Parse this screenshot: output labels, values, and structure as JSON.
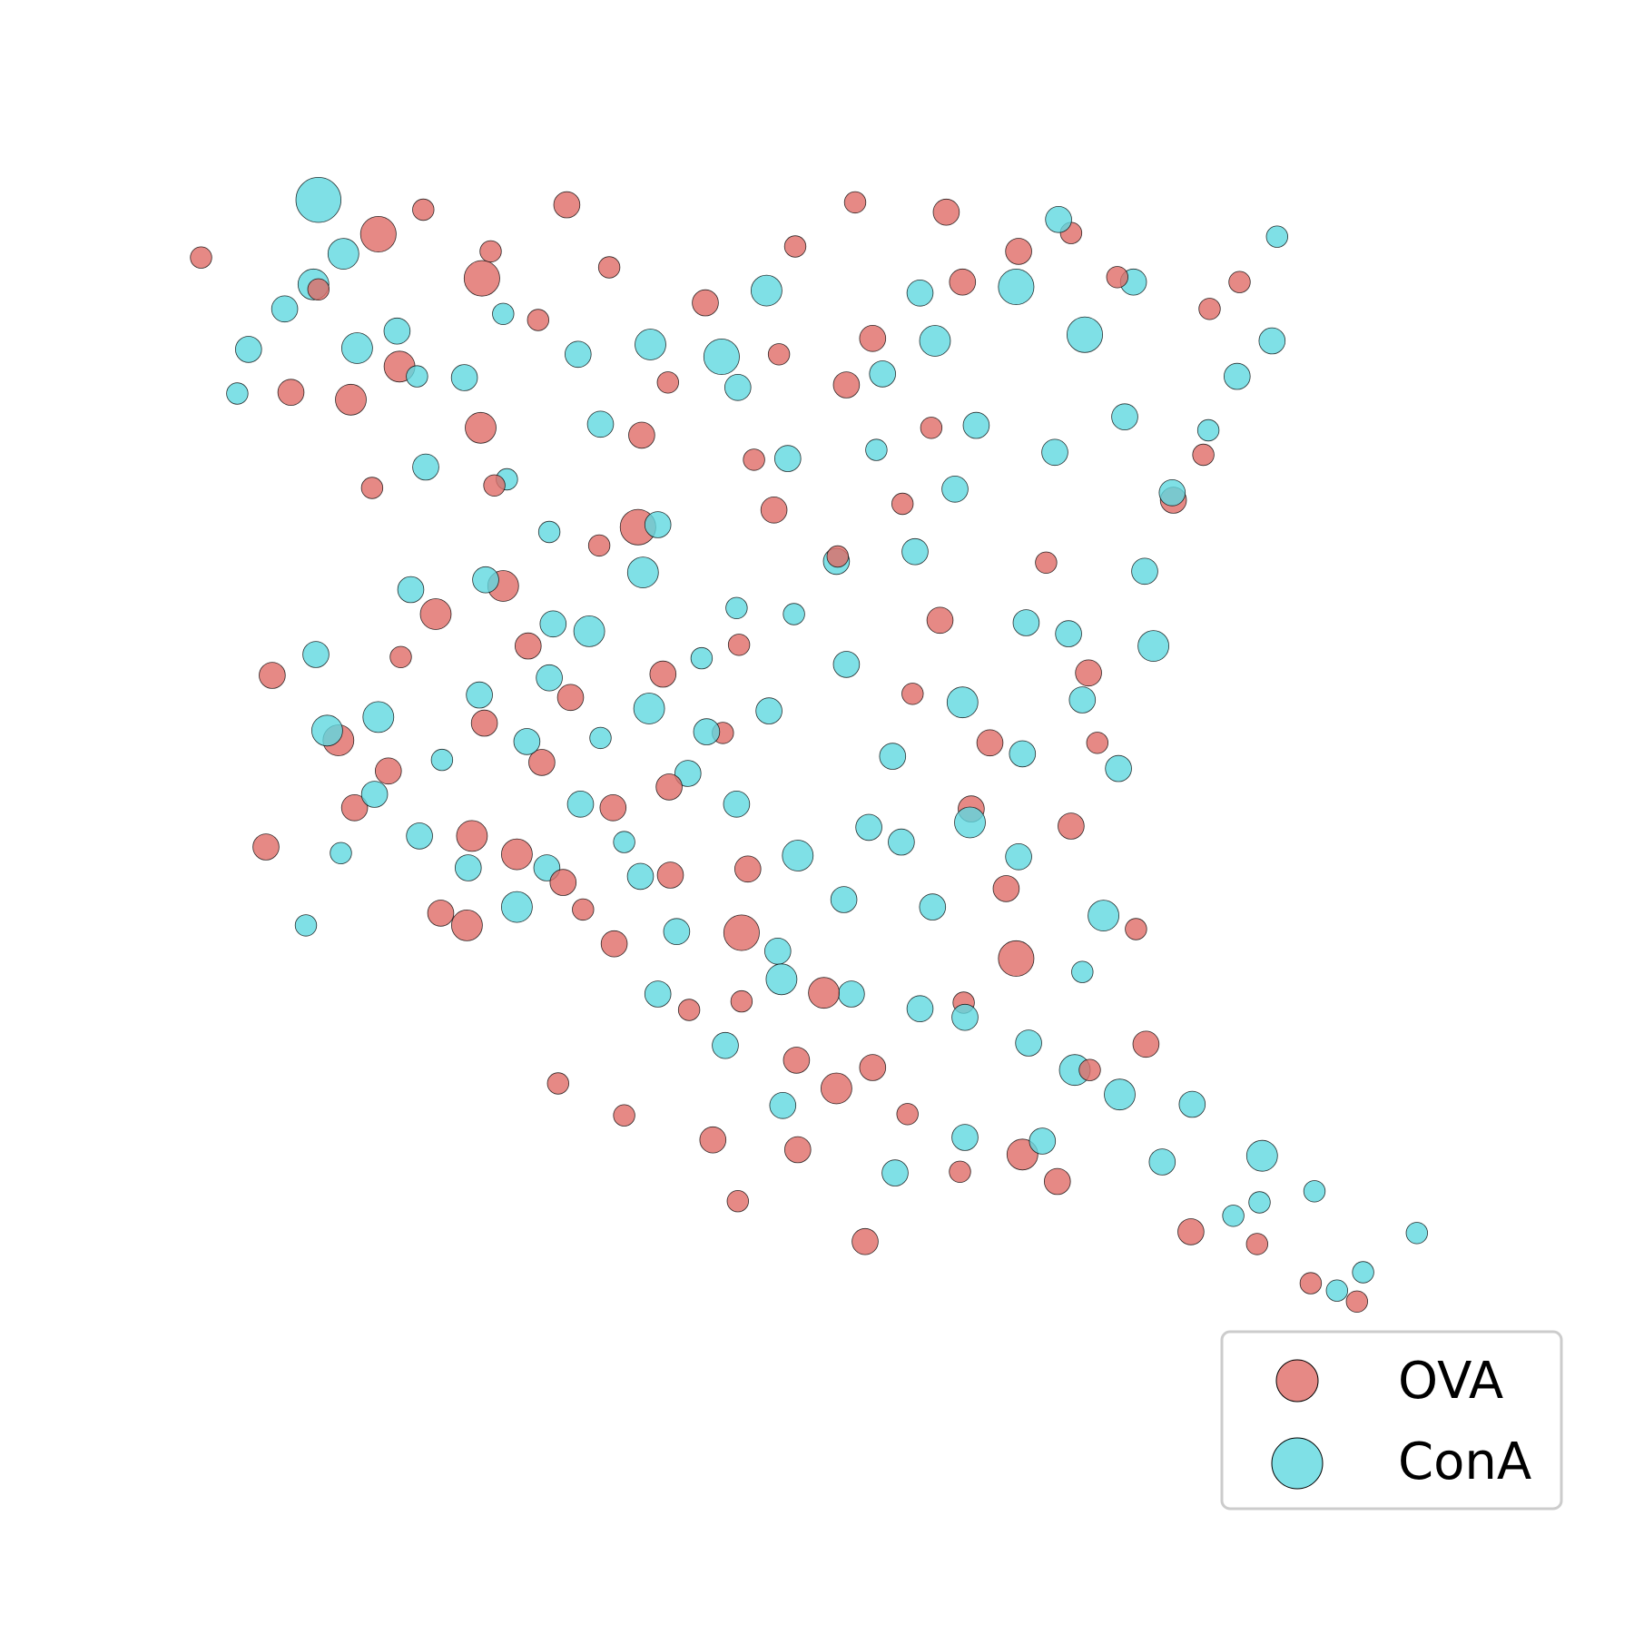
{
  "chart_data": {
    "type": "scatter",
    "title": "",
    "xlabel": "",
    "ylabel": "",
    "axes_visible": false,
    "grid": false,
    "legend_placement": "lower-right",
    "xlim": [
      0,
      100
    ],
    "ylim": [
      0,
      100
    ],
    "series": [
      {
        "name": "OVA",
        "color": "#e06c66",
        "points": [
          [
            1.2,
            90.1,
            3
          ],
          [
            15.4,
            92.0,
            6
          ],
          [
            23.7,
            88.4,
            6
          ],
          [
            30.5,
            94.4,
            4
          ],
          [
            28.2,
            85.0,
            3
          ],
          [
            17.1,
            81.2,
            5
          ],
          [
            13.2,
            78.5,
            5
          ],
          [
            23.6,
            76.2,
            5
          ],
          [
            36.5,
            75.6,
            4
          ],
          [
            47.1,
            69.5,
            4
          ],
          [
            55.0,
            83.5,
            4
          ],
          [
            52.9,
            79.7,
            4
          ],
          [
            60.9,
            93.8,
            4
          ],
          [
            62.2,
            88.1,
            4
          ],
          [
            66.7,
            90.6,
            4
          ],
          [
            45.5,
            73.6,
            3
          ],
          [
            36.2,
            68.1,
            6
          ],
          [
            25.4,
            63.3,
            5
          ],
          [
            20.0,
            61.0,
            5
          ],
          [
            27.4,
            58.4,
            4
          ],
          [
            23.9,
            52.1,
            4
          ],
          [
            30.8,
            54.2,
            4
          ],
          [
            12.2,
            50.7,
            5
          ],
          [
            6.9,
            56.0,
            4
          ],
          [
            16.2,
            48.2,
            4
          ],
          [
            13.5,
            45.2,
            4
          ],
          [
            22.9,
            42.9,
            5
          ],
          [
            26.5,
            41.4,
            5
          ],
          [
            34.2,
            45.2,
            4
          ],
          [
            38.8,
            39.7,
            4
          ],
          [
            45.0,
            40.2,
            4
          ],
          [
            30.2,
            39.1,
            4
          ],
          [
            22.5,
            35.6,
            5
          ],
          [
            34.3,
            34.1,
            4
          ],
          [
            44.5,
            35.0,
            6
          ],
          [
            44.5,
            29.4,
            3
          ],
          [
            51.1,
            30.1,
            5
          ],
          [
            48.9,
            24.6,
            4
          ],
          [
            52.1,
            22.3,
            5
          ],
          [
            55.0,
            24.0,
            4
          ],
          [
            66.5,
            32.9,
            6
          ],
          [
            62.9,
            45.1,
            4
          ],
          [
            70.9,
            43.7,
            4
          ],
          [
            65.7,
            38.6,
            4
          ],
          [
            64.4,
            50.5,
            4
          ],
          [
            72.3,
            56.2,
            4
          ],
          [
            60.4,
            60.5,
            4
          ],
          [
            52.2,
            65.7,
            3
          ],
          [
            44.3,
            58.5,
            3
          ],
          [
            38.2,
            56.1,
            4
          ],
          [
            33.1,
            66.6,
            3
          ],
          [
            20.4,
            36.6,
            4
          ],
          [
            6.4,
            42.0,
            4
          ],
          [
            76.9,
            25.9,
            4
          ],
          [
            72.4,
            23.8,
            3
          ],
          [
            57.8,
            20.2,
            3
          ],
          [
            62.0,
            15.5,
            3
          ],
          [
            67.0,
            16.9,
            5
          ],
          [
            69.8,
            14.7,
            4
          ],
          [
            80.5,
            10.6,
            4
          ],
          [
            85.8,
            9.6,
            3
          ],
          [
            90.1,
            6.4,
            3
          ],
          [
            93.8,
            4.9,
            3
          ],
          [
            54.4,
            9.8,
            4
          ],
          [
            44.2,
            13.1,
            3
          ],
          [
            35.1,
            20.1,
            3
          ],
          [
            29.8,
            22.7,
            3
          ],
          [
            42.2,
            18.1,
            4
          ],
          [
            49.0,
            17.3,
            4
          ],
          [
            38.7,
            46.9,
            4
          ],
          [
            58.2,
            54.5,
            3
          ],
          [
            73.0,
            50.5,
            3
          ],
          [
            79.1,
            70.3,
            4
          ],
          [
            81.5,
            74.0,
            3
          ],
          [
            8.4,
            79.1,
            4
          ],
          [
            33.9,
            89.3,
            3
          ],
          [
            41.6,
            86.4,
            4
          ],
          [
            47.5,
            82.2,
            3
          ],
          [
            57.4,
            70.0,
            3
          ],
          [
            68.9,
            65.2,
            3
          ],
          [
            10.6,
            87.5,
            3
          ],
          [
            19.0,
            94.0,
            3
          ],
          [
            24.4,
            90.6,
            3
          ],
          [
            48.8,
            91.0,
            3
          ],
          [
            53.6,
            94.6,
            3
          ],
          [
            70.9,
            92.1,
            3
          ],
          [
            74.6,
            88.5,
            3
          ],
          [
            84.4,
            88.1,
            3
          ],
          [
            82.0,
            85.9,
            3
          ],
          [
            28.5,
            48.9,
            4
          ],
          [
            31.8,
            36.9,
            3
          ],
          [
            40.3,
            28.7,
            3
          ],
          [
            62.3,
            29.3,
            3
          ],
          [
            76.1,
            35.3,
            3
          ],
          [
            17.2,
            57.5,
            3
          ],
          [
            59.7,
            76.2,
            3
          ],
          [
            38.6,
            79.9,
            3
          ],
          [
            24.7,
            71.5,
            3
          ],
          [
            14.9,
            71.3,
            3
          ],
          [
            43.0,
            51.3,
            3
          ]
        ]
      },
      {
        "name": "ConA",
        "color": "#5fd8e0",
        "points": [
          [
            10.6,
            94.8,
            8
          ],
          [
            12.6,
            90.4,
            5
          ],
          [
            10.2,
            87.9,
            5
          ],
          [
            13.7,
            82.7,
            5
          ],
          [
            4.1,
            79.0,
            3
          ],
          [
            18.5,
            80.4,
            3
          ],
          [
            25.4,
            85.5,
            3
          ],
          [
            37.2,
            83.0,
            5
          ],
          [
            46.5,
            87.4,
            5
          ],
          [
            42.9,
            82.0,
            6
          ],
          [
            31.4,
            82.2,
            4
          ],
          [
            44.2,
            79.5,
            4
          ],
          [
            55.8,
            80.6,
            4
          ],
          [
            60.0,
            83.3,
            5
          ],
          [
            58.8,
            87.2,
            4
          ],
          [
            66.5,
            87.7,
            6
          ],
          [
            69.9,
            93.2,
            4
          ],
          [
            75.9,
            88.1,
            4
          ],
          [
            87.4,
            91.8,
            3
          ],
          [
            87.0,
            83.3,
            4
          ],
          [
            72.0,
            83.8,
            6
          ],
          [
            63.3,
            76.4,
            4
          ],
          [
            69.6,
            74.2,
            4
          ],
          [
            48.2,
            73.7,
            4
          ],
          [
            37.8,
            68.3,
            4
          ],
          [
            29.1,
            67.7,
            3
          ],
          [
            36.6,
            64.4,
            5
          ],
          [
            32.3,
            59.6,
            5
          ],
          [
            29.1,
            55.8,
            4
          ],
          [
            18.0,
            63.0,
            4
          ],
          [
            10.4,
            57.7,
            4
          ],
          [
            11.3,
            51.5,
            5
          ],
          [
            15.4,
            52.6,
            5
          ],
          [
            23.5,
            54.4,
            4
          ],
          [
            27.3,
            50.6,
            4
          ],
          [
            37.1,
            53.3,
            5
          ],
          [
            41.7,
            51.4,
            4
          ],
          [
            46.7,
            53.1,
            4
          ],
          [
            52.9,
            56.9,
            4
          ],
          [
            62.2,
            53.8,
            5
          ],
          [
            71.8,
            54.0,
            4
          ],
          [
            70.7,
            59.4,
            4
          ],
          [
            77.5,
            58.4,
            5
          ],
          [
            74.7,
            48.4,
            4
          ],
          [
            73.5,
            36.4,
            5
          ],
          [
            62.8,
            44.0,
            5
          ],
          [
            57.3,
            42.4,
            4
          ],
          [
            54.7,
            43.6,
            4
          ],
          [
            49.0,
            41.3,
            5
          ],
          [
            44.1,
            45.5,
            4
          ],
          [
            40.2,
            48.0,
            4
          ],
          [
            31.6,
            45.5,
            4
          ],
          [
            28.9,
            40.3,
            4
          ],
          [
            26.5,
            37.1,
            5
          ],
          [
            22.6,
            40.3,
            4
          ],
          [
            18.7,
            42.9,
            4
          ],
          [
            15.1,
            46.3,
            4
          ],
          [
            39.3,
            35.1,
            4
          ],
          [
            47.4,
            33.5,
            4
          ],
          [
            47.7,
            31.2,
            5
          ],
          [
            53.3,
            30.0,
            4
          ],
          [
            58.8,
            28.8,
            4
          ],
          [
            62.4,
            28.1,
            4
          ],
          [
            67.5,
            26.0,
            4
          ],
          [
            71.2,
            23.8,
            5
          ],
          [
            74.8,
            21.8,
            5
          ],
          [
            80.6,
            21.0,
            4
          ],
          [
            86.2,
            16.8,
            5
          ],
          [
            90.4,
            13.9,
            3
          ],
          [
            98.6,
            10.5,
            3
          ],
          [
            92.2,
            5.8,
            3
          ],
          [
            83.9,
            11.9,
            3
          ],
          [
            78.2,
            16.3,
            4
          ],
          [
            68.6,
            18.0,
            4
          ],
          [
            62.4,
            18.3,
            4
          ],
          [
            56.8,
            15.4,
            4
          ],
          [
            47.8,
            20.9,
            4
          ],
          [
            43.2,
            25.8,
            4
          ],
          [
            37.8,
            30.0,
            4
          ],
          [
            36.4,
            39.6,
            4
          ],
          [
            29.4,
            60.2,
            4
          ],
          [
            24.0,
            63.8,
            4
          ],
          [
            19.2,
            73.0,
            4
          ],
          [
            25.7,
            72.0,
            3
          ],
          [
            44.1,
            61.5,
            3
          ],
          [
            52.1,
            65.3,
            4
          ],
          [
            58.4,
            66.1,
            4
          ],
          [
            67.3,
            60.3,
            4
          ],
          [
            76.8,
            64.5,
            4
          ],
          [
            79.0,
            70.9,
            4
          ],
          [
            81.9,
            76.0,
            3
          ],
          [
            84.2,
            80.4,
            4
          ],
          [
            75.2,
            77.1,
            4
          ],
          [
            61.6,
            71.2,
            4
          ],
          [
            55.3,
            74.4,
            3
          ],
          [
            33.2,
            76.5,
            4
          ],
          [
            22.3,
            80.3,
            4
          ],
          [
            16.9,
            84.1,
            4
          ],
          [
            7.9,
            85.9,
            4
          ],
          [
            5.0,
            82.6,
            4
          ],
          [
            48.7,
            61.0,
            3
          ],
          [
            41.3,
            57.4,
            3
          ],
          [
            56.6,
            49.4,
            4
          ],
          [
            67.0,
            49.6,
            4
          ],
          [
            66.7,
            41.2,
            4
          ],
          [
            59.8,
            37.1,
            4
          ],
          [
            52.7,
            37.7,
            4
          ],
          [
            35.1,
            42.4,
            3
          ],
          [
            33.2,
            50.9,
            3
          ],
          [
            20.5,
            49.1,
            3
          ],
          [
            12.4,
            41.5,
            3
          ],
          [
            9.6,
            35.6,
            3
          ],
          [
            86.0,
            13.0,
            3
          ],
          [
            94.3,
            7.3,
            3
          ],
          [
            71.8,
            31.8,
            3
          ]
        ]
      }
    ]
  },
  "legend": {
    "entries": [
      {
        "label": "OVA",
        "color": "#e06c66"
      },
      {
        "label": "ConA",
        "color": "#5fd8e0"
      }
    ]
  }
}
